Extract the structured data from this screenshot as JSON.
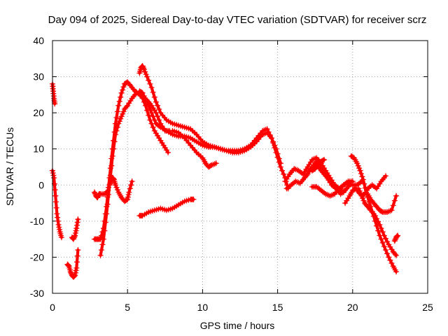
{
  "chart_data": {
    "type": "scatter",
    "title": "Day 094 of 2025, Sidereal Day-to-day VTEC variation (SDTVAR) for receiver scrz",
    "xlabel": "GPS time / hours",
    "ylabel": "SDTVAR / TECUs",
    "xlim": [
      0,
      25
    ],
    "ylim": [
      -30,
      40
    ],
    "x_ticks": [
      0,
      5,
      10,
      15,
      20,
      25
    ],
    "y_ticks": [
      -30,
      -20,
      -10,
      0,
      10,
      20,
      30,
      40
    ],
    "x_tick_labels": [
      "0",
      "5",
      "10",
      "15",
      "20",
      "25"
    ],
    "y_tick_labels": [
      "-30",
      "-20",
      "-10",
      "0",
      "10",
      "20",
      "30",
      "40"
    ],
    "grid": true,
    "marker": "+",
    "color": "#ff0000",
    "series": [
      {
        "name": "s1",
        "x": [
          0.0,
          0.05,
          0.1,
          0.15
        ],
        "y": [
          28,
          26,
          24,
          22.5
        ]
      },
      {
        "name": "s2",
        "x": [
          0.0,
          0.1,
          0.2,
          0.3,
          0.4,
          0.5,
          0.6
        ],
        "y": [
          4,
          2,
          -3,
          -8,
          -11,
          -13,
          -14.5
        ]
      },
      {
        "name": "s3",
        "x": [
          1.0,
          1.1,
          1.2,
          1.3,
          1.4,
          1.5,
          1.6,
          1.7
        ],
        "y": [
          -22,
          -22.5,
          -24,
          -25,
          -25.5,
          -25,
          -23,
          -18
        ]
      },
      {
        "name": "s4",
        "x": [
          1.3,
          1.4,
          1.5,
          1.6,
          1.7
        ],
        "y": [
          -14.5,
          -15,
          -14,
          -12,
          -9.5
        ]
      },
      {
        "name": "s5",
        "x": [
          2.8,
          2.9,
          3.0,
          3.1,
          3.2,
          3.5,
          3.7
        ],
        "y": [
          -2,
          -3,
          -3.5,
          -2.5,
          -2.5,
          -2.5,
          -1.5
        ]
      },
      {
        "name": "s6",
        "x": [
          2.8,
          3.0,
          3.2,
          3.4,
          3.6,
          3.8,
          4.0,
          4.2,
          4.4,
          4.6,
          4.8,
          5.0,
          5.2,
          5.5,
          5.8,
          6.0,
          6.3,
          6.6,
          6.9,
          7.2,
          7.5,
          7.8
        ],
        "y": [
          -15,
          -15,
          -15,
          -12,
          -6,
          2,
          10,
          17,
          22,
          25.5,
          28,
          28.5,
          27.5,
          26,
          25,
          24.5,
          23.5,
          22,
          20,
          17,
          15,
          15
        ]
      },
      {
        "name": "s7",
        "x": [
          3.2,
          3.4,
          3.6,
          3.8,
          4.0,
          4.2,
          4.4,
          4.6,
          4.8,
          5.0,
          5.3,
          5.6,
          5.9,
          6.2,
          6.5,
          6.8,
          7.1,
          7.4,
          7.7
        ],
        "y": [
          -19.5,
          -15,
          -8,
          0,
          8,
          14,
          17,
          19,
          21,
          22,
          24,
          25.5,
          25,
          22,
          18,
          15,
          13,
          11,
          9
        ]
      },
      {
        "name": "s8",
        "x": [
          3.8,
          3.9,
          4.0,
          4.1,
          4.2,
          4.4,
          4.6,
          4.8,
          5.0,
          5.1,
          5.3
        ],
        "y": [
          0,
          1,
          2,
          1.5,
          0,
          -2,
          -3.5,
          -4.5,
          -4,
          -2,
          1
        ]
      },
      {
        "name": "s9",
        "x": [
          5.8,
          5.9,
          6.0,
          6.1,
          6.3,
          6.6,
          6.9,
          7.2,
          7.6,
          8.0,
          8.4,
          8.8,
          9.2,
          9.6,
          10.0,
          10.4,
          10.8,
          11.2,
          11.6,
          12.0,
          12.4,
          12.8,
          13.2,
          13.6,
          14.0,
          14.3,
          14.6,
          14.9,
          15.2,
          15.5,
          15.7
        ],
        "y": [
          31,
          32.5,
          33,
          32,
          30,
          27,
          23,
          20,
          18,
          17,
          16.5,
          16,
          15.5,
          14,
          12,
          11,
          10.5,
          10,
          9.5,
          9.5,
          9.5,
          10,
          11,
          13,
          15,
          15.5,
          13,
          9,
          5,
          2,
          -1
        ]
      },
      {
        "name": "s10",
        "x": [
          5.8,
          6.0,
          6.3,
          6.6,
          6.9,
          7.2,
          7.6,
          8.0,
          8.4,
          8.8,
          9.2,
          9.6,
          10.0,
          10.4,
          10.8,
          11.2,
          11.6,
          12.0,
          12.4,
          12.8,
          13.2,
          13.6,
          14.0,
          14.3,
          14.6,
          14.9,
          15.2
        ],
        "y": [
          26,
          25.5,
          23,
          20,
          17,
          16,
          15,
          14,
          13.5,
          13.5,
          13,
          12,
          11,
          10.5,
          10.5,
          10,
          9.5,
          9,
          9,
          9.5,
          10.5,
          12,
          14,
          14.5,
          13,
          10,
          6
        ]
      },
      {
        "name": "s11",
        "x": [
          8.0,
          8.4,
          8.8,
          9.2,
          9.6,
          10.0,
          10.2,
          10.4,
          10.6,
          10.9
        ],
        "y": [
          15,
          14.5,
          13,
          11,
          9,
          7.5,
          6,
          5,
          5.5,
          6
        ]
      },
      {
        "name": "s12",
        "x": [
          5.8,
          6.0,
          6.4,
          6.8,
          7.2,
          7.6,
          8.0,
          8.4,
          8.8,
          9.2,
          9.4
        ],
        "y": [
          -8.5,
          -8.5,
          -7.5,
          -7,
          -6.5,
          -7,
          -6.5,
          -5.5,
          -4.5,
          -4,
          -4
        ]
      },
      {
        "name": "s13",
        "x": [
          15.5,
          15.8,
          16.1,
          16.4,
          16.7,
          17.0,
          17.3,
          17.6,
          17.9,
          18.2,
          18.5,
          18.8,
          19.1,
          19.4,
          19.7,
          20.0
        ],
        "y": [
          1,
          3,
          4.5,
          4,
          3,
          5,
          7,
          7.5,
          6,
          4,
          2,
          0,
          -1.5,
          0,
          1,
          1
        ]
      },
      {
        "name": "s14",
        "x": [
          15.6,
          15.9,
          16.2,
          16.5,
          16.8,
          17.1,
          17.4,
          17.7,
          18.0,
          18.3,
          18.6,
          18.9,
          19.2,
          19.5,
          19.8
        ],
        "y": [
          -1,
          0,
          1,
          0.5,
          2,
          4,
          5.5,
          5,
          3.5,
          2,
          0,
          -1,
          -2.5,
          -1.5,
          0
        ]
      },
      {
        "name": "s15",
        "x": [
          16.8,
          17.0,
          17.3,
          17.6,
          17.9,
          18.2,
          18.5,
          18.8,
          19.1,
          19.4
        ],
        "y": [
          2,
          3,
          5,
          6.5,
          5,
          3,
          1,
          0,
          -1,
          -2
        ]
      },
      {
        "name": "s16",
        "x": [
          17.3,
          17.5,
          17.7,
          17.9,
          18.1
        ],
        "y": [
          4,
          4.5,
          5.5,
          6.5,
          7
        ]
      },
      {
        "name": "s17",
        "x": [
          17.3,
          17.6,
          17.9,
          18.2,
          18.5,
          18.8,
          19.1,
          19.4,
          19.7,
          20.0,
          20.3,
          20.6
        ],
        "y": [
          -0.5,
          -0.5,
          -1.5,
          -2.5,
          -3,
          -2.5,
          -1,
          0,
          0.5,
          0,
          0,
          1
        ]
      },
      {
        "name": "s18",
        "x": [
          19.5,
          19.8,
          20.0,
          20.2,
          20.4,
          20.6,
          20.8,
          21.0,
          21.3,
          21.6,
          21.9,
          22.2
        ],
        "y": [
          -5,
          -3,
          -1.5,
          -1,
          -2,
          -3,
          -2.5,
          -1,
          0,
          -1,
          1,
          2.5
        ]
      },
      {
        "name": "s19",
        "x": [
          19.9,
          20.1,
          20.3,
          20.5,
          20.7,
          20.9,
          21.2,
          21.5,
          21.8,
          22.1,
          22.4,
          22.7,
          22.9
        ],
        "y": [
          8,
          7.5,
          6,
          4,
          1.5,
          -2,
          -6,
          -10,
          -14,
          -17,
          -20,
          -22.5,
          -24
        ]
      },
      {
        "name": "s20",
        "x": [
          20.4,
          20.6,
          20.8,
          21.0,
          21.2,
          21.5,
          21.8,
          22.1,
          22.4,
          22.7,
          22.9
        ],
        "y": [
          -1,
          -3,
          -5,
          -6,
          -7,
          -8.5,
          -11,
          -14,
          -16.5,
          -18.5,
          -19.5
        ]
      },
      {
        "name": "s21",
        "x": [
          21.0,
          21.2,
          21.4,
          21.6,
          21.8,
          22.0,
          22.3,
          22.6,
          22.9
        ],
        "y": [
          -2.5,
          -4,
          -5,
          -6,
          -7,
          -7.5,
          -7.5,
          -7,
          -3
        ]
      },
      {
        "name": "s22",
        "x": [
          22.8,
          22.9,
          23.0
        ],
        "y": [
          -15.5,
          -14.5,
          -14
        ]
      }
    ]
  }
}
